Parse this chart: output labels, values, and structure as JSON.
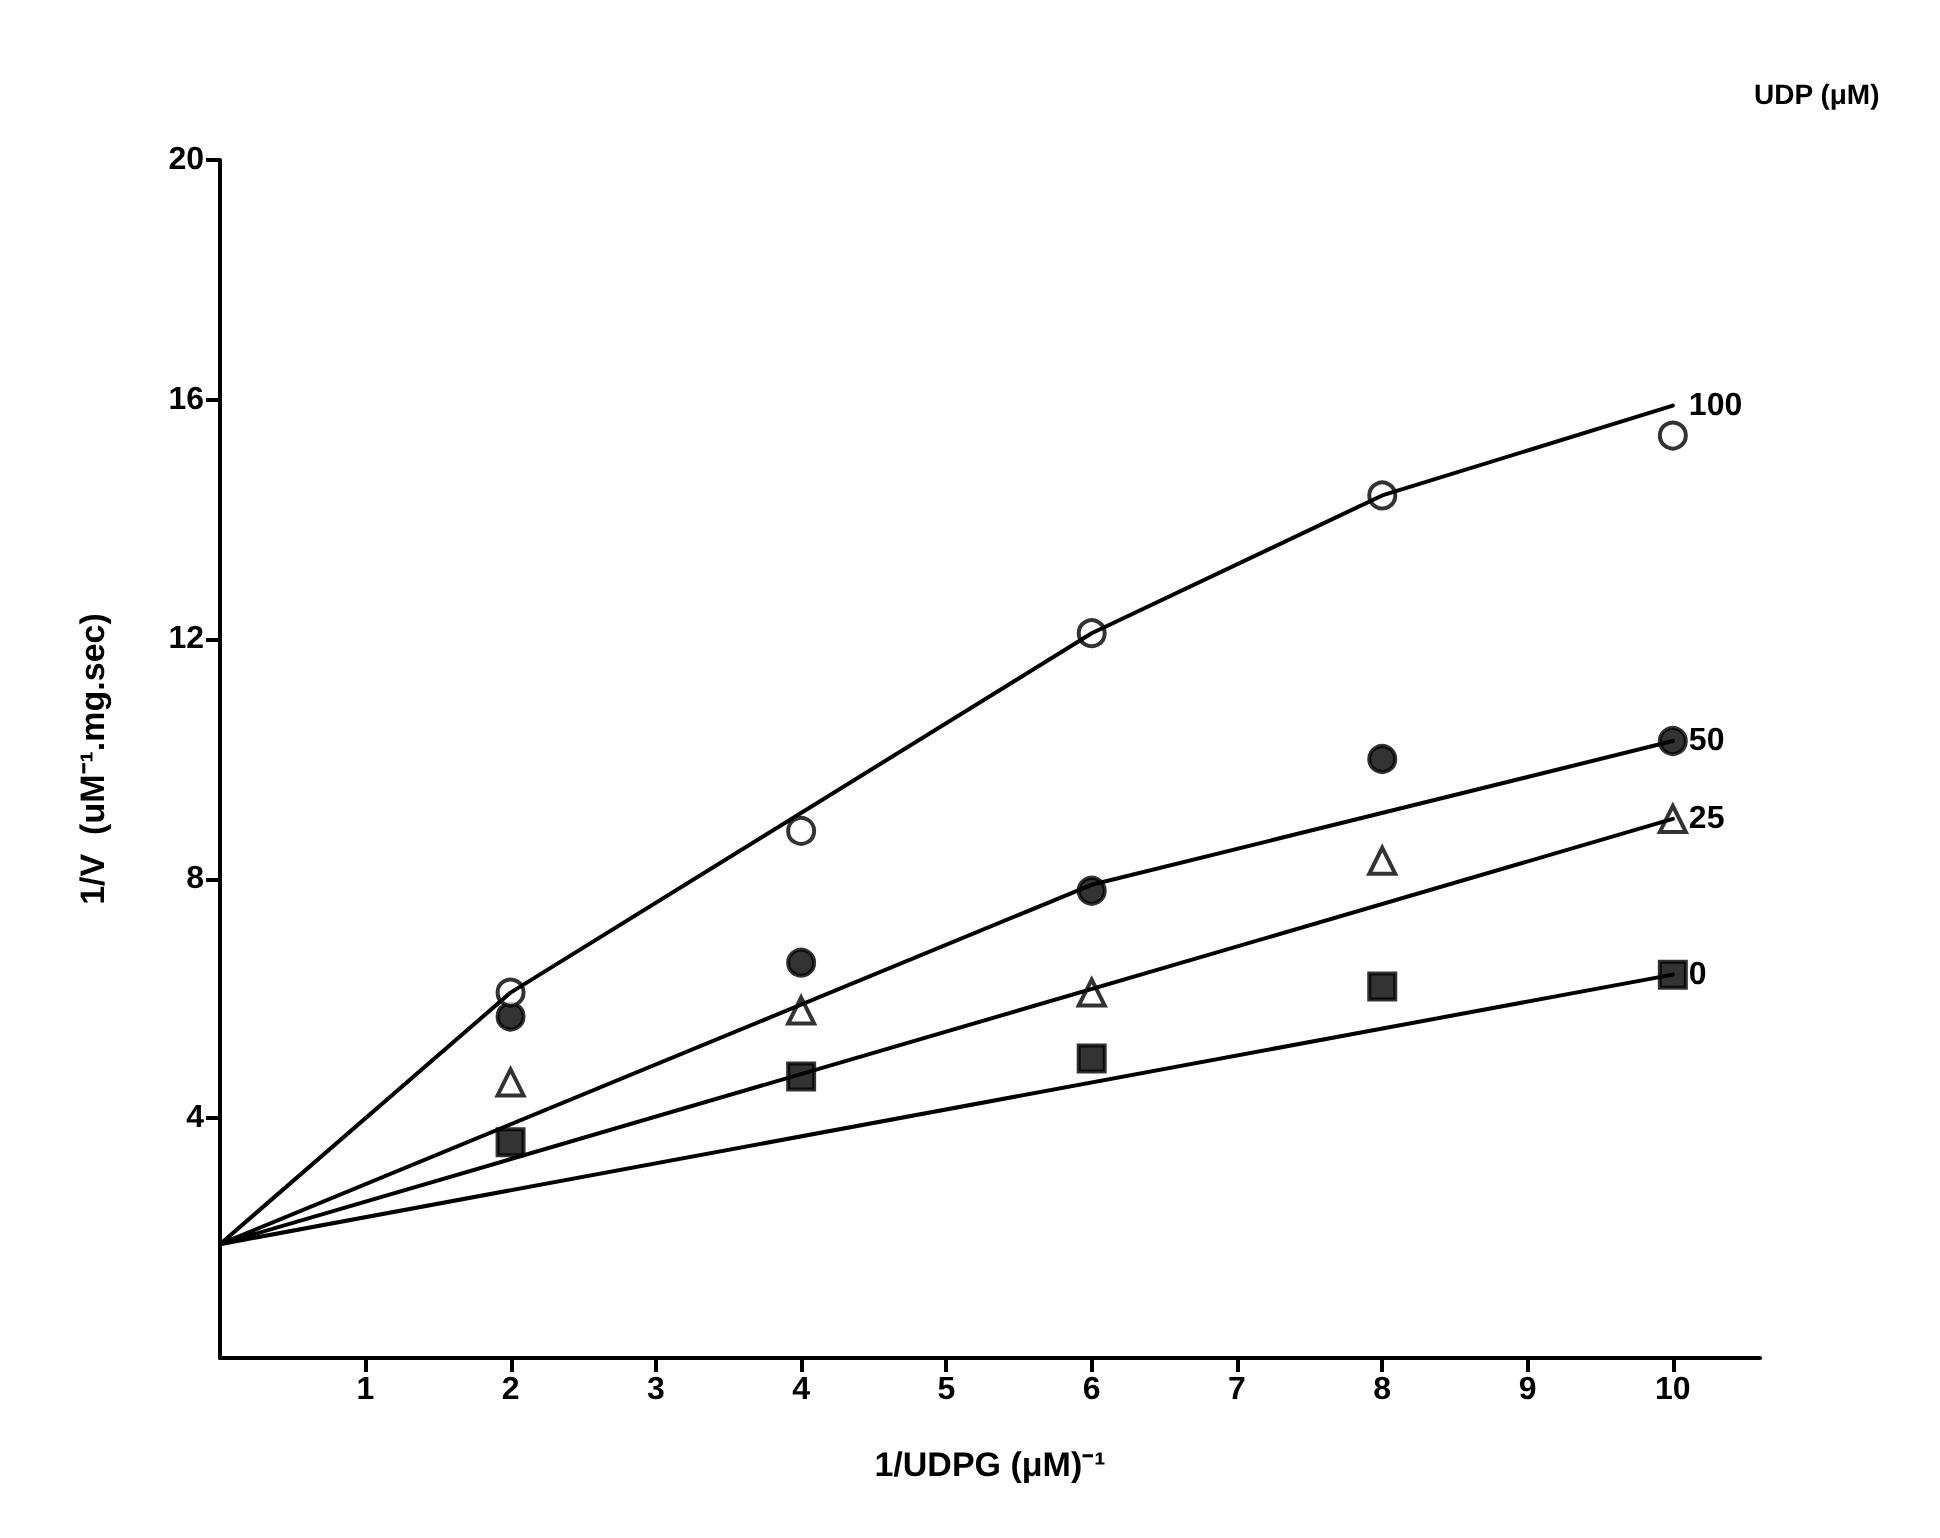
{
  "chart_data": {
    "type": "scatter",
    "xlabel": "1/UDPG (μM)⁻¹",
    "ylabel": "1/V  (uM⁻¹.mg.sec)",
    "legend_title": "UDP (μM)",
    "xlim": [
      0,
      10.6
    ],
    "xticks": [
      1,
      2,
      3,
      4,
      5,
      6,
      7,
      8,
      9,
      10
    ],
    "ylim": [
      0,
      20
    ],
    "yticks": [
      4,
      8,
      12,
      16,
      20
    ],
    "grid": false,
    "legend": false,
    "series": [
      {
        "color": "#000000",
        "marker": "square",
        "x": [
          2,
          4,
          6,
          8,
          10
        ],
        "values": [
          3.6,
          4.7,
          5.0,
          6.2,
          6.4
        ]
      },
      {
        "color": "#ffffff",
        "marker": "triangle",
        "x": [
          2,
          4,
          6,
          8,
          10
        ],
        "values": [
          4.6,
          5.8,
          6.1,
          8.3,
          9.0
        ]
      },
      {
        "color": "#000000",
        "marker": "circle",
        "x": [
          2,
          4,
          6,
          8,
          10
        ],
        "values": [
          5.7,
          6.6,
          7.8,
          10.0,
          10.3
        ]
      },
      {
        "color": "#ffffff",
        "marker": "circle",
        "x": [
          2,
          4,
          6,
          8,
          10
        ],
        "values": [
          6.1,
          8.8,
          12.1,
          14.4,
          15.4
        ]
      },
      {
        "type": "line",
        "name": "0",
        "color": "#000000",
        "marker": "none",
        "x": [
          0,
          10
        ],
        "values": [
          1.9,
          6.4
        ]
      },
      {
        "type": "line",
        "name": "25",
        "color": "#000000",
        "marker": "none",
        "x": [
          0,
          10
        ],
        "values": [
          1.9,
          9.0
        ]
      },
      {
        "type": "line",
        "name": "50",
        "color": "#000000",
        "marker": "none",
        "x": [
          0,
          6,
          10
        ],
        "values": [
          1.9,
          7.9,
          10.3
        ]
      },
      {
        "type": "line",
        "name": "100",
        "color": "#000000",
        "marker": "none",
        "x": [
          0,
          2,
          6,
          8,
          10
        ],
        "values": [
          1.9,
          6.1,
          12.1,
          14.4,
          15.9
        ]
      }
    ]
  }
}
